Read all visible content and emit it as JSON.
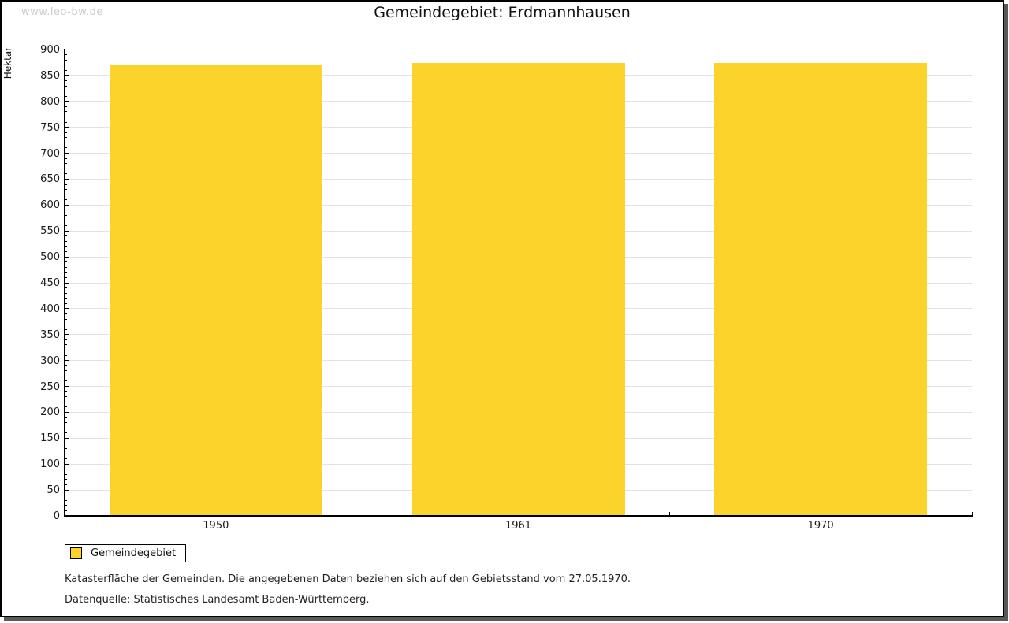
{
  "watermark": "www.leo-bw.de",
  "title": "Gemeindegebiet: Erdmannhausen",
  "chart_data": {
    "type": "bar",
    "title": "Gemeindegebiet: Erdmannhausen",
    "categories": [
      "1950",
      "1961",
      "1970"
    ],
    "series": [
      {
        "name": "Gemeindegebiet",
        "color": "#fcd32b",
        "values": [
          871,
          874,
          874
        ]
      }
    ],
    "xlabel": "",
    "ylabel": "Hektar",
    "ylim": [
      0,
      900
    ],
    "ytick_step": 50,
    "yminor_step": 10,
    "grid": true,
    "legend_position": "bottom-left"
  },
  "legend": {
    "items": [
      {
        "label": "Gemeindegebiet",
        "color": "#fcd32b"
      }
    ]
  },
  "footnotes": [
    "Katasterfläche der Gemeinden. Die angegebenen Daten beziehen sich auf den Gebietsstand vom 27.05.1970.",
    "Datenquelle: Statistisches Landesamt Baden-Württemberg."
  ],
  "colors": {
    "bar": "#fcd32b",
    "gridline": "#e2e2e2",
    "axis": "#000000",
    "watermark": "#cccccc",
    "frame_shadow": "#595959"
  }
}
